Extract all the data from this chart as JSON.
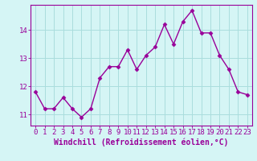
{
  "x": [
    0,
    1,
    2,
    3,
    4,
    5,
    6,
    7,
    8,
    9,
    10,
    11,
    12,
    13,
    14,
    15,
    16,
    17,
    18,
    19,
    20,
    21,
    22,
    23
  ],
  "y": [
    11.8,
    11.2,
    11.2,
    11.6,
    11.2,
    10.9,
    11.2,
    12.3,
    12.7,
    12.7,
    13.3,
    12.6,
    13.1,
    13.4,
    14.2,
    13.5,
    14.3,
    14.7,
    13.9,
    13.9,
    13.1,
    12.6,
    11.8,
    11.7
  ],
  "line_color": "#990099",
  "marker": "D",
  "marker_size": 2.5,
  "bg_color": "#d5f5f5",
  "grid_color": "#aadddd",
  "xlabel": "Windchill (Refroidissement éolien,°C)",
  "xlabel_color": "#990099",
  "xlabel_fontsize": 7,
  "yticks": [
    11,
    12,
    13,
    14
  ],
  "ylim": [
    10.6,
    14.9
  ],
  "xlim": [
    -0.5,
    23.5
  ],
  "tick_fontsize": 6.5,
  "tick_color": "#990099",
  "spine_color": "#990099",
  "linewidth": 1.0
}
